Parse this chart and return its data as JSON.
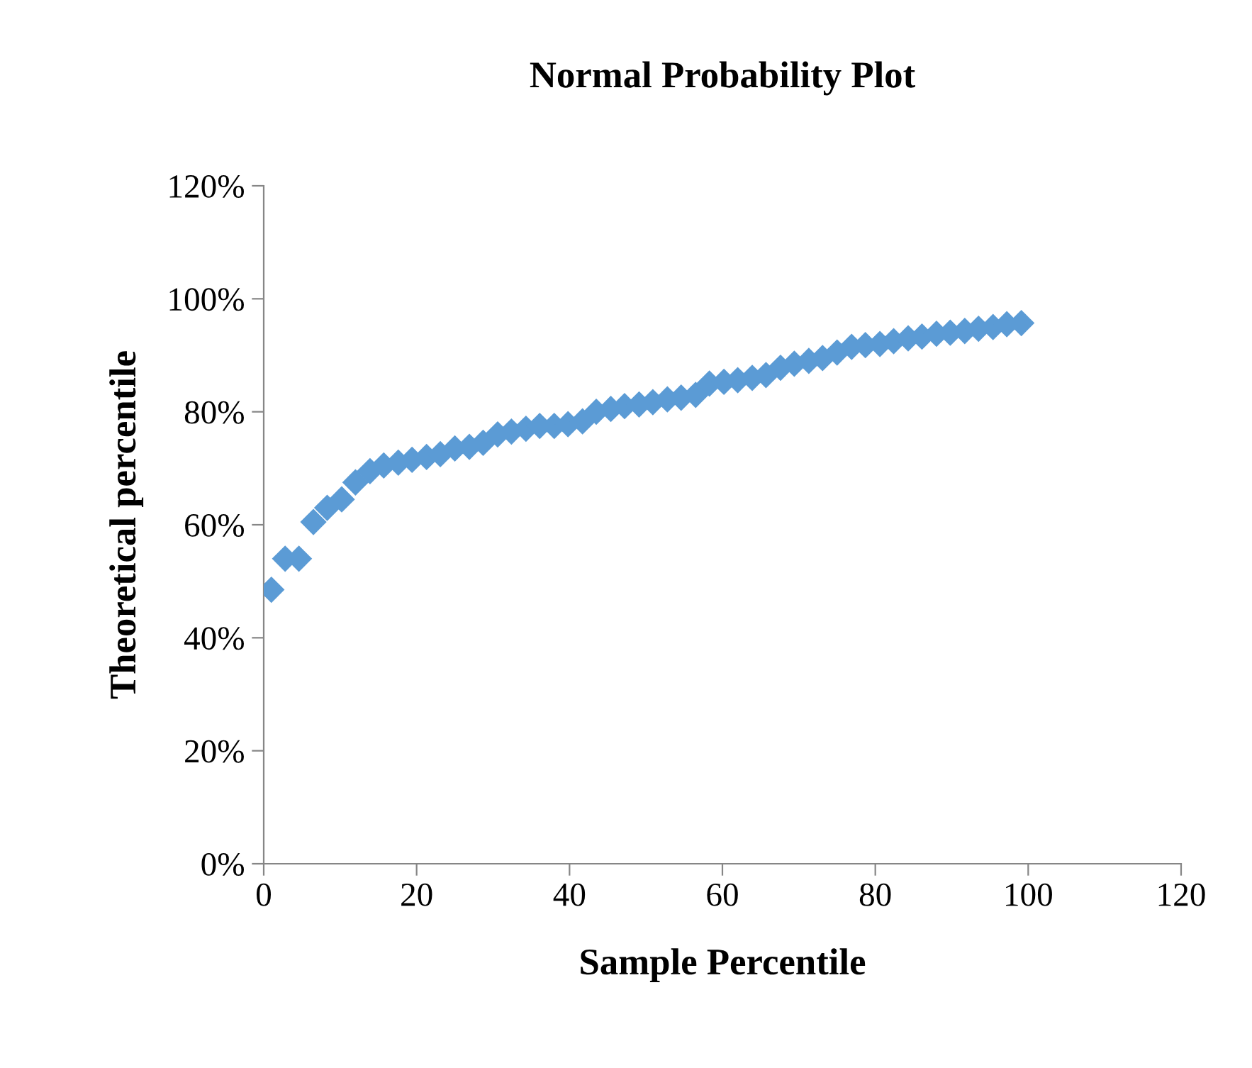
{
  "chart_data": {
    "type": "scatter",
    "title": "Normal Probability Plot",
    "xlabel": "Sample Percentile",
    "ylabel": "Theoretical percentile",
    "x": [
      1,
      2.8,
      4.6,
      6.5,
      8.3,
      10.2,
      12,
      13.9,
      15.7,
      17.6,
      19.4,
      21.3,
      23.1,
      25,
      26.9,
      28.7,
      30.6,
      32.4,
      34.3,
      36.1,
      38,
      39.8,
      41.7,
      43.5,
      45.4,
      47.2,
      49.1,
      50.9,
      52.8,
      54.6,
      56.5,
      58.3,
      60.2,
      62,
      63.9,
      65.7,
      67.6,
      69.4,
      71.3,
      73.1,
      75,
      76.9,
      78.7,
      80.6,
      82.4,
      84.3,
      86.1,
      88,
      89.8,
      91.7,
      93.5,
      95.4,
      97.2,
      99.1
    ],
    "values": [
      48.5,
      54,
      54,
      60.5,
      63,
      64.5,
      67.5,
      69.5,
      70.5,
      71,
      71.5,
      72,
      72.5,
      73.5,
      73.8,
      74.5,
      76,
      76.5,
      77,
      77.5,
      77.5,
      77.8,
      78.3,
      80,
      80.5,
      81,
      81.3,
      81.7,
      82.2,
      82.5,
      83,
      85,
      85.3,
      85.6,
      86,
      86.5,
      87.8,
      88.5,
      89,
      89.5,
      90.5,
      91.5,
      91.8,
      92,
      92.5,
      93,
      93.3,
      93.8,
      94,
      94.3,
      94.7,
      95,
      95.5,
      95.7
    ],
    "color": "#5b9bd5",
    "marker": "diamond",
    "xlim": [
      0,
      120
    ],
    "xticks": [
      0,
      20,
      40,
      60,
      80,
      100,
      120
    ],
    "ylim": [
      0,
      120
    ],
    "yticks": [
      {
        "value": 0,
        "label": "0%"
      },
      {
        "value": 20,
        "label": "20%"
      },
      {
        "value": 40,
        "label": "40%"
      },
      {
        "value": 60,
        "label": "60%"
      },
      {
        "value": 80,
        "label": "80%"
      },
      {
        "value": 100,
        "label": "100%"
      },
      {
        "value": 120,
        "label": "120%"
      }
    ],
    "grid": false,
    "legend": false
  }
}
